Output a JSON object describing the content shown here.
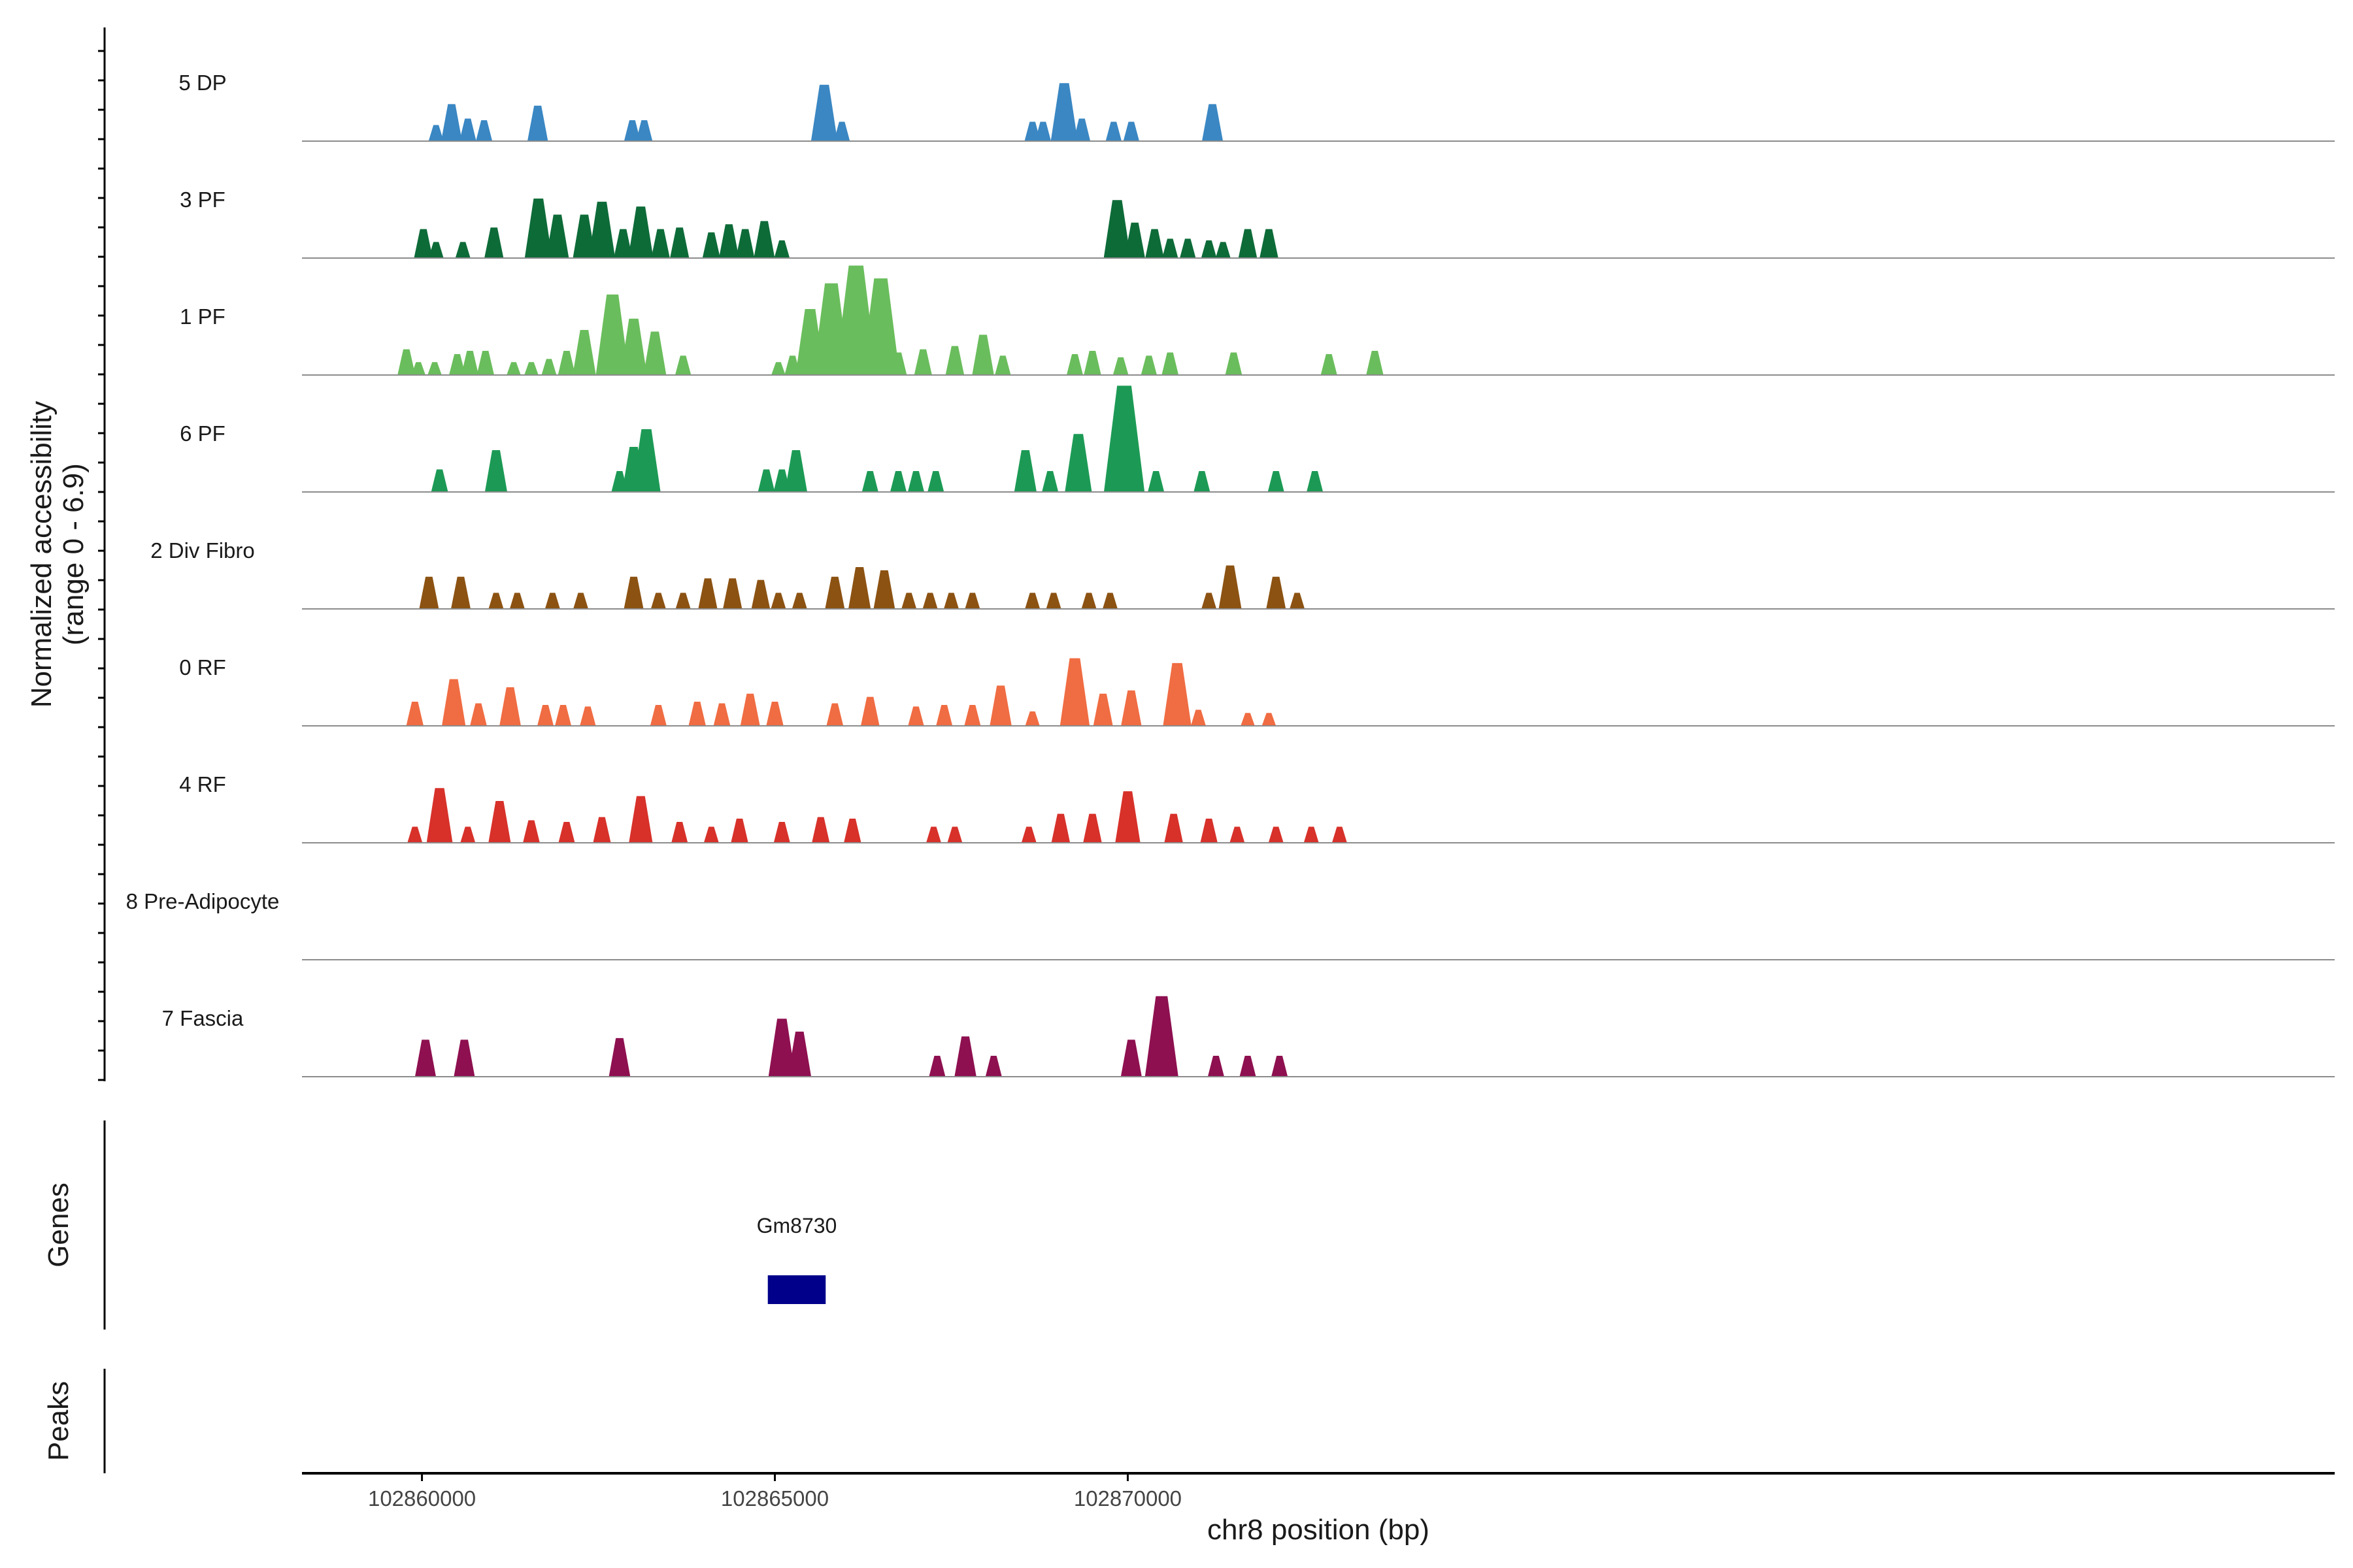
{
  "chart_data": {
    "type": "area",
    "title": "",
    "region": "chr8",
    "x_range": [
      102858300,
      102887100
    ],
    "xlabel": "chr8 position (bp)",
    "ylabel_lines": [
      "Normalized accessibility",
      "(range 0 - 6.9)"
    ],
    "y_range": [
      0,
      6.9
    ],
    "x_ticks": [
      102860000,
      102865000,
      102870000
    ],
    "x_tick_labels": [
      "102860000",
      "102865000",
      "102870000"
    ],
    "tracks": [
      {
        "name": "5 DP",
        "color": "#3a87c3",
        "peaks": [
          [
            102860200,
            1.0
          ],
          [
            102860420,
            2.3
          ],
          [
            102860650,
            1.4
          ],
          [
            102860880,
            1.3
          ],
          [
            102861640,
            2.2
          ],
          [
            102862980,
            1.3
          ],
          [
            102863150,
            1.3
          ],
          [
            102865700,
            3.5
          ],
          [
            102865950,
            1.2
          ],
          [
            102868650,
            1.2
          ],
          [
            102868800,
            1.2
          ],
          [
            102869100,
            3.6
          ],
          [
            102869350,
            1.4
          ],
          [
            102869800,
            1.2
          ],
          [
            102870050,
            1.2
          ],
          [
            102871200,
            2.3
          ]
        ]
      },
      {
        "name": "3 PF",
        "color": "#0d6b38",
        "peaks": [
          [
            102860020,
            1.8
          ],
          [
            102860200,
            1.0
          ],
          [
            102860580,
            1.0
          ],
          [
            102861020,
            1.9
          ],
          [
            102861650,
            3.7
          ],
          [
            102861920,
            2.7
          ],
          [
            102862300,
            2.7
          ],
          [
            102862550,
            3.5
          ],
          [
            102862850,
            1.8
          ],
          [
            102863100,
            3.2
          ],
          [
            102863380,
            1.8
          ],
          [
            102863650,
            1.9
          ],
          [
            102864100,
            1.6
          ],
          [
            102864350,
            2.1
          ],
          [
            102864580,
            1.8
          ],
          [
            102864850,
            2.3
          ],
          [
            102865100,
            1.1
          ],
          [
            102869850,
            3.6
          ],
          [
            102870100,
            2.2
          ],
          [
            102870380,
            1.8
          ],
          [
            102870600,
            1.2
          ],
          [
            102870850,
            1.2
          ],
          [
            102871150,
            1.1
          ],
          [
            102871350,
            1.0
          ],
          [
            102871700,
            1.8
          ],
          [
            102872000,
            1.8
          ]
        ]
      },
      {
        "name": "1 PF",
        "color": "#6abd5c",
        "peaks": [
          [
            102859780,
            1.6
          ],
          [
            102859950,
            0.8
          ],
          [
            102860180,
            0.8
          ],
          [
            102860500,
            1.3
          ],
          [
            102860680,
            1.5
          ],
          [
            102860900,
            1.5
          ],
          [
            102861300,
            0.8
          ],
          [
            102861550,
            0.8
          ],
          [
            102861800,
            1.0
          ],
          [
            102862050,
            1.5
          ],
          [
            102862300,
            2.8
          ],
          [
            102862700,
            5.0
          ],
          [
            102863000,
            3.5
          ],
          [
            102863300,
            2.7
          ],
          [
            102863700,
            1.2
          ],
          [
            102865050,
            0.8
          ],
          [
            102865250,
            1.2
          ],
          [
            102865500,
            4.1
          ],
          [
            102865800,
            5.7
          ],
          [
            102866150,
            6.8
          ],
          [
            102866500,
            6.0
          ],
          [
            102866750,
            1.4
          ],
          [
            102867100,
            1.6
          ],
          [
            102867550,
            1.8
          ],
          [
            102867950,
            2.5
          ],
          [
            102868230,
            1.2
          ],
          [
            102869250,
            1.3
          ],
          [
            102869500,
            1.5
          ],
          [
            102869900,
            1.1
          ],
          [
            102870300,
            1.2
          ],
          [
            102870600,
            1.4
          ],
          [
            102871500,
            1.4
          ],
          [
            102872850,
            1.3
          ],
          [
            102873500,
            1.5
          ]
        ]
      },
      {
        "name": "6 PF",
        "color": "#1c9a55",
        "peaks": [
          [
            102860250,
            1.4
          ],
          [
            102861050,
            2.6
          ],
          [
            102862800,
            1.3
          ],
          [
            102863000,
            2.8
          ],
          [
            102863180,
            3.9
          ],
          [
            102864880,
            1.4
          ],
          [
            102865100,
            1.4
          ],
          [
            102865300,
            2.6
          ],
          [
            102866350,
            1.3
          ],
          [
            102866750,
            1.3
          ],
          [
            102867000,
            1.3
          ],
          [
            102867280,
            1.3
          ],
          [
            102868550,
            2.6
          ],
          [
            102868900,
            1.3
          ],
          [
            102869300,
            3.6
          ],
          [
            102869950,
            6.6
          ],
          [
            102870400,
            1.3
          ],
          [
            102871050,
            1.3
          ],
          [
            102872100,
            1.3
          ],
          [
            102872650,
            1.3
          ]
        ]
      },
      {
        "name": "2 Div Fibro",
        "color": "#8c5212",
        "peaks": [
          [
            102860100,
            2.0
          ],
          [
            102860550,
            2.0
          ],
          [
            102861050,
            1.0
          ],
          [
            102861350,
            1.0
          ],
          [
            102861850,
            1.0
          ],
          [
            102862250,
            1.0
          ],
          [
            102863000,
            2.0
          ],
          [
            102863350,
            1.0
          ],
          [
            102863700,
            1.0
          ],
          [
            102864050,
            1.9
          ],
          [
            102864400,
            1.9
          ],
          [
            102864800,
            1.8
          ],
          [
            102865050,
            1.0
          ],
          [
            102865350,
            1.0
          ],
          [
            102865850,
            2.0
          ],
          [
            102866200,
            2.6
          ],
          [
            102866550,
            2.4
          ],
          [
            102866900,
            1.0
          ],
          [
            102867200,
            1.0
          ],
          [
            102867500,
            1.0
          ],
          [
            102867800,
            1.0
          ],
          [
            102868650,
            1.0
          ],
          [
            102868950,
            1.0
          ],
          [
            102869450,
            1.0
          ],
          [
            102869750,
            1.0
          ],
          [
            102871150,
            1.0
          ],
          [
            102871450,
            2.7
          ],
          [
            102872100,
            2.0
          ],
          [
            102872400,
            1.0
          ]
        ]
      },
      {
        "name": "0 RF",
        "color": "#f06c42",
        "peaks": [
          [
            102859900,
            1.5
          ],
          [
            102860450,
            2.9
          ],
          [
            102860800,
            1.4
          ],
          [
            102861250,
            2.4
          ],
          [
            102861750,
            1.3
          ],
          [
            102862000,
            1.3
          ],
          [
            102862350,
            1.2
          ],
          [
            102863350,
            1.3
          ],
          [
            102863900,
            1.5
          ],
          [
            102864250,
            1.4
          ],
          [
            102864650,
            2.0
          ],
          [
            102865000,
            1.5
          ],
          [
            102865850,
            1.4
          ],
          [
            102866350,
            1.8
          ],
          [
            102867000,
            1.2
          ],
          [
            102867400,
            1.3
          ],
          [
            102867800,
            1.3
          ],
          [
            102868200,
            2.5
          ],
          [
            102868650,
            0.9
          ],
          [
            102869250,
            4.2
          ],
          [
            102869650,
            2.0
          ],
          [
            102870050,
            2.2
          ],
          [
            102870700,
            3.9
          ],
          [
            102871000,
            1.0
          ],
          [
            102871700,
            0.8
          ],
          [
            102872000,
            0.8
          ]
        ]
      },
      {
        "name": "4 RF",
        "color": "#d7312a",
        "peaks": [
          [
            102859900,
            1.0
          ],
          [
            102860250,
            3.4
          ],
          [
            102860650,
            1.0
          ],
          [
            102861100,
            2.6
          ],
          [
            102861550,
            1.4
          ],
          [
            102862050,
            1.3
          ],
          [
            102862550,
            1.6
          ],
          [
            102863100,
            2.9
          ],
          [
            102863650,
            1.3
          ],
          [
            102864100,
            1.0
          ],
          [
            102864500,
            1.5
          ],
          [
            102865100,
            1.3
          ],
          [
            102865650,
            1.6
          ],
          [
            102866100,
            1.5
          ],
          [
            102867250,
            1.0
          ],
          [
            102867550,
            1.0
          ],
          [
            102868600,
            1.0
          ],
          [
            102869050,
            1.8
          ],
          [
            102869500,
            1.8
          ],
          [
            102870000,
            3.2
          ],
          [
            102870650,
            1.8
          ],
          [
            102871150,
            1.5
          ],
          [
            102871550,
            1.0
          ],
          [
            102872100,
            1.0
          ],
          [
            102872600,
            1.0
          ],
          [
            102873000,
            1.0
          ]
        ]
      },
      {
        "name": "8 Pre-Adipocyte",
        "color": "#8b8b8b",
        "peaks": []
      },
      {
        "name": "7 Fascia",
        "color": "#8e1050",
        "peaks": [
          [
            102860050,
            2.3
          ],
          [
            102860600,
            2.3
          ],
          [
            102862800,
            2.4
          ],
          [
            102865100,
            3.6
          ],
          [
            102865350,
            2.8
          ],
          [
            102867300,
            1.3
          ],
          [
            102867700,
            2.5
          ],
          [
            102868100,
            1.3
          ],
          [
            102870050,
            2.3
          ],
          [
            102870480,
            5.0
          ],
          [
            102871250,
            1.3
          ],
          [
            102871700,
            1.3
          ],
          [
            102872150,
            1.3
          ]
        ]
      }
    ]
  },
  "genes_panel": {
    "title": "Genes",
    "genes": [
      {
        "name": "Gm8730",
        "start": 102864900,
        "end": 102865720,
        "color": "#00008b"
      }
    ]
  },
  "peaks_panel": {
    "title": "Peaks",
    "peaks": []
  }
}
